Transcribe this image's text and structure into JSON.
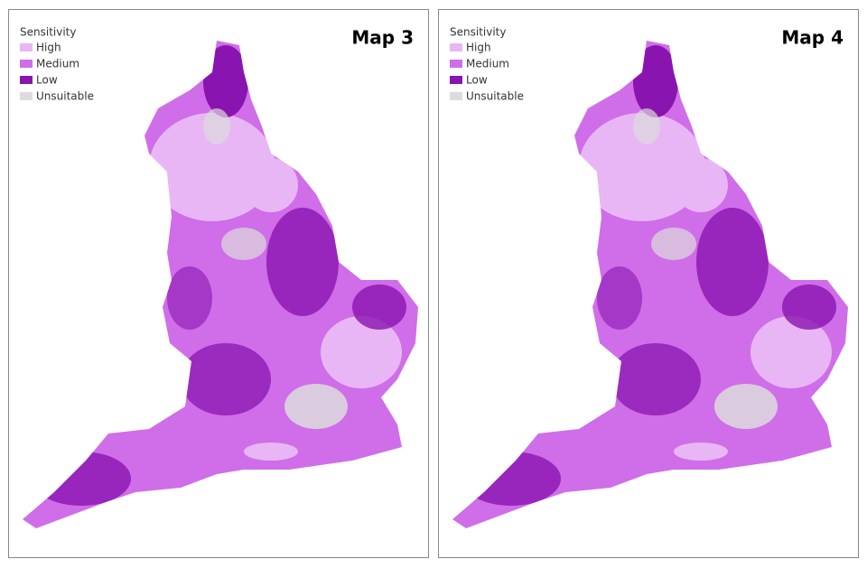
{
  "panels": [
    {
      "title": "Map 3",
      "legend": {
        "title": "Sensitivity",
        "items": [
          {
            "label": "High",
            "color": "#e9b6f5"
          },
          {
            "label": "Medium",
            "color": "#cf6ee8"
          },
          {
            "label": "Low",
            "color": "#8a14b0"
          },
          {
            "label": "Unsuitable",
            "color": "#dcdcdc"
          }
        ]
      }
    },
    {
      "title": "Map 4",
      "legend": {
        "title": "Sensitivity",
        "items": [
          {
            "label": "High",
            "color": "#e9b6f5"
          },
          {
            "label": "Medium",
            "color": "#cf6ee8"
          },
          {
            "label": "Low",
            "color": "#8a14b0"
          },
          {
            "label": "Unsuitable",
            "color": "#dcdcdc"
          }
        ]
      }
    }
  ]
}
